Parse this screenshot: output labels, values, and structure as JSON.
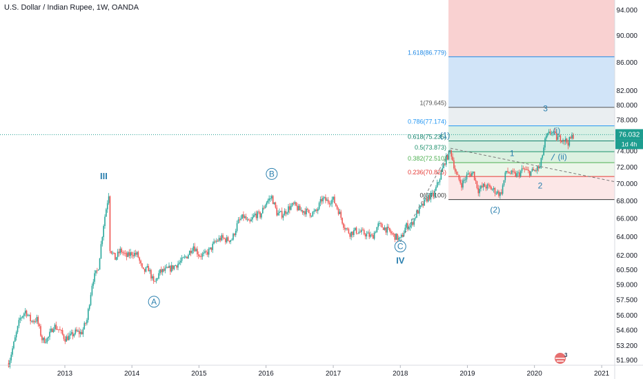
{
  "header": {
    "title": "U.S. Dollar / Indian Rupee, 1W, OANDA"
  },
  "chart_data": {
    "type": "candlestick",
    "title": "U.S. Dollar / Indian Rupee, 1W, OANDA",
    "price_axis": {
      "ticks": [
        "51.900",
        "53.200",
        "54.600",
        "56.000",
        "57.500",
        "59.000",
        "60.500",
        "62.000",
        "64.000",
        "66.000",
        "68.000",
        "70.000",
        "72.000",
        "74.000",
        "76.000",
        "78.000",
        "80.000",
        "82.000",
        "86.000",
        "90.000",
        "94.000"
      ],
      "scale": "log",
      "ylim": [
        51.3,
        97.0
      ]
    },
    "time_axis": {
      "ticks": [
        "2013",
        "2014",
        "2015",
        "2016",
        "2017",
        "2018",
        "2019",
        "2020",
        "2021"
      ]
    },
    "last_price": {
      "value": "76.032",
      "countdown": "1d 4h",
      "color": "#1d9d8f"
    },
    "price_path": [
      [
        "2012-03",
        51.6
      ],
      [
        "2012-04",
        53.5
      ],
      [
        "2012-05",
        55.6
      ],
      [
        "2012-06",
        56.4
      ],
      [
        "2012-07",
        55.4
      ],
      [
        "2012-08",
        55.6
      ],
      [
        "2012-09",
        53.6
      ],
      [
        "2012-10",
        53.8
      ],
      [
        "2012-11",
        55.0
      ],
      [
        "2012-12",
        54.6
      ],
      [
        "2013-01",
        53.8
      ],
      [
        "2013-02",
        54.0
      ],
      [
        "2013-03",
        54.4
      ],
      [
        "2013-04",
        54.3
      ],
      [
        "2013-05",
        55.5
      ],
      [
        "2013-06",
        59.4
      ],
      [
        "2013-07",
        60.5
      ],
      [
        "2013-08",
        65.5
      ],
      [
        "2013-08-28",
        68.8
      ],
      [
        "2013-09",
        62.8
      ],
      [
        "2013-10",
        61.6
      ],
      [
        "2013-11",
        62.5
      ],
      [
        "2013-12",
        61.8
      ],
      [
        "2014-01",
        62.2
      ],
      [
        "2014-02",
        62.0
      ],
      [
        "2014-03",
        60.2
      ],
      [
        "2014-04",
        60.6
      ],
      [
        "2014-05",
        59.0
      ],
      [
        "2014-06",
        60.2
      ],
      [
        "2014-07",
        60.4
      ],
      [
        "2014-08",
        60.6
      ],
      [
        "2014-09",
        61.0
      ],
      [
        "2014-10",
        61.4
      ],
      [
        "2014-11",
        62.0
      ],
      [
        "2014-12",
        63.0
      ],
      [
        "2015-01",
        62.0
      ],
      [
        "2015-02",
        62.0
      ],
      [
        "2015-03",
        62.5
      ],
      [
        "2015-04",
        63.4
      ],
      [
        "2015-05",
        63.8
      ],
      [
        "2015-06",
        63.6
      ],
      [
        "2015-07",
        63.7
      ],
      [
        "2015-08",
        65.5
      ],
      [
        "2015-09",
        66.2
      ],
      [
        "2015-10",
        65.3
      ],
      [
        "2015-11",
        66.4
      ],
      [
        "2015-12",
        66.3
      ],
      [
        "2016-01",
        67.8
      ],
      [
        "2016-02",
        68.4
      ],
      [
        "2016-03",
        66.5
      ],
      [
        "2016-04",
        66.4
      ],
      [
        "2016-05",
        67.1
      ],
      [
        "2016-06",
        67.5
      ],
      [
        "2016-07",
        66.9
      ],
      [
        "2016-08",
        66.8
      ],
      [
        "2016-09",
        66.5
      ],
      [
        "2016-10",
        66.7
      ],
      [
        "2016-11",
        68.2
      ],
      [
        "2016-12",
        67.9
      ],
      [
        "2017-01",
        68.1
      ],
      [
        "2017-02",
        66.7
      ],
      [
        "2017-03",
        65.1
      ],
      [
        "2017-04",
        64.3
      ],
      [
        "2017-05",
        64.6
      ],
      [
        "2017-06",
        64.4
      ],
      [
        "2017-07",
        64.2
      ],
      [
        "2017-08",
        63.9
      ],
      [
        "2017-09",
        65.2
      ],
      [
        "2017-10",
        65.0
      ],
      [
        "2017-11",
        64.5
      ],
      [
        "2017-12",
        64.0
      ],
      [
        "2018-01",
        63.6
      ],
      [
        "2018-02",
        65.1
      ],
      [
        "2018-03",
        65.2
      ],
      [
        "2018-04",
        66.6
      ],
      [
        "2018-05",
        67.4
      ],
      [
        "2018-06",
        68.4
      ],
      [
        "2018-07",
        68.6
      ],
      [
        "2018-08",
        70.5
      ],
      [
        "2018-09",
        72.7
      ],
      [
        "2018-10",
        74.0
      ],
      [
        "2018-11",
        71.0
      ],
      [
        "2018-12",
        69.9
      ],
      [
        "2019-01",
        71.0
      ],
      [
        "2019-02",
        71.3
      ],
      [
        "2019-03",
        69.2
      ],
      [
        "2019-04",
        69.7
      ],
      [
        "2019-05",
        69.5
      ],
      [
        "2019-06",
        69.1
      ],
      [
        "2019-07",
        68.7
      ],
      [
        "2019-08",
        71.5
      ],
      [
        "2019-09",
        71.1
      ],
      [
        "2019-10",
        71.0
      ],
      [
        "2019-11",
        71.7
      ],
      [
        "2019-12",
        71.3
      ],
      [
        "2020-01",
        71.5
      ],
      [
        "2020-02",
        72.0
      ],
      [
        "2020-03",
        75.5
      ],
      [
        "2020-04",
        76.5
      ],
      [
        "2020-05",
        75.6
      ],
      [
        "2020-06",
        75.6
      ],
      [
        "2020-07",
        75.0
      ],
      [
        "2020-08",
        76.0
      ]
    ],
    "fib_levels": [
      {
        "label": "0(68.100)",
        "value": 68.1,
        "color": "#333333"
      },
      {
        "label": "0.236(70.825)",
        "value": 70.825,
        "color": "#e53935"
      },
      {
        "label": "0.382(72.510)",
        "value": 72.51,
        "color": "#4caf50"
      },
      {
        "label": "0.5(73.873)",
        "value": 73.873,
        "color": "#1b8f6a"
      },
      {
        "label": "0.618(75.235)",
        "value": 75.235,
        "color": "#11806a"
      },
      {
        "label": "0.786(77.174)",
        "value": 77.174,
        "color": "#2196f3"
      },
      {
        "label": "1(79.645)",
        "value": 79.645,
        "color": "#555555"
      },
      {
        "label": "1.618(86.779)",
        "value": 86.779,
        "color": "#1e88e5"
      }
    ],
    "wave_labels": [
      {
        "text": "III",
        "date": "2013-08",
        "price": 70.5,
        "style": "plain-bold"
      },
      {
        "text": "A",
        "date": "2014-05",
        "price": 57.0,
        "style": "circle"
      },
      {
        "text": "B",
        "date": "2016-02",
        "price": 70.8,
        "style": "circle"
      },
      {
        "text": "C",
        "date": "2018-01",
        "price": 62.6,
        "style": "circle"
      },
      {
        "text": "IV",
        "date": "2018-01",
        "price": 61.1,
        "style": "plain-bold"
      },
      {
        "text": "(1)",
        "date": "2018-09",
        "price": 75.6,
        "style": "plain"
      },
      {
        "text": "(2)",
        "date": "2019-06",
        "price": 66.6,
        "style": "plain"
      },
      {
        "text": "1",
        "date": "2019-09",
        "price": 73.3,
        "style": "plain"
      },
      {
        "text": "2",
        "date": "2020-02",
        "price": 69.4,
        "style": "plain"
      },
      {
        "text": "3",
        "date": "2020-03",
        "price": 79.1,
        "style": "plain"
      },
      {
        "text": "(i)",
        "date": "2020-05",
        "price": 76.2,
        "style": "plain"
      },
      {
        "text": "(ii)",
        "date": "2020-06",
        "price": 72.9,
        "style": "plain"
      }
    ],
    "colors": {
      "up": "#26a69a",
      "down": "#ef5350",
      "wave": "#2a7fae"
    }
  },
  "watermark": {
    "text": "3",
    "icon": "tradingview-logo-icon"
  }
}
